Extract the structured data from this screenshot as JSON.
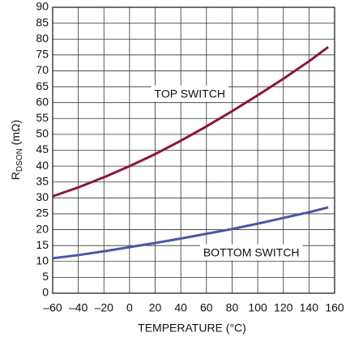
{
  "chart_data": {
    "type": "line",
    "y_label": {
      "main": "R",
      "sub": "DSON",
      "rest": " (mΩ)"
    },
    "x_label": "TEMPERATURE (°C)",
    "x": [
      -60,
      -40,
      -20,
      0,
      20,
      40,
      60,
      80,
      100,
      120,
      140,
      155
    ],
    "series": [
      {
        "name": "TOP SWITCH",
        "color": "#8b1538",
        "values": [
          30.5,
          33.3,
          36.5,
          40,
          43.8,
          48,
          52.5,
          57.3,
          62.3,
          67.5,
          73,
          77.5
        ]
      },
      {
        "name": "BOTTOM SWITCH",
        "color": "#4a58a8",
        "values": [
          11,
          12,
          13.2,
          14.5,
          15.8,
          17.2,
          18.7,
          20.2,
          21.9,
          23.7,
          25.5,
          27
        ]
      }
    ],
    "xlim": [
      -60,
      160
    ],
    "xticks": [
      {
        "value": -60,
        "label": "–60"
      },
      {
        "value": -40,
        "label": "–40"
      },
      {
        "value": -20,
        "label": "–20"
      },
      0,
      20,
      40,
      60,
      80,
      100,
      120,
      140,
      160
    ],
    "ylim": [
      0,
      90
    ],
    "yticks": [
      0,
      5,
      10,
      15,
      20,
      25,
      30,
      35,
      40,
      45,
      50,
      55,
      60,
      65,
      70,
      75,
      80,
      85,
      90
    ],
    "grid": true
  }
}
